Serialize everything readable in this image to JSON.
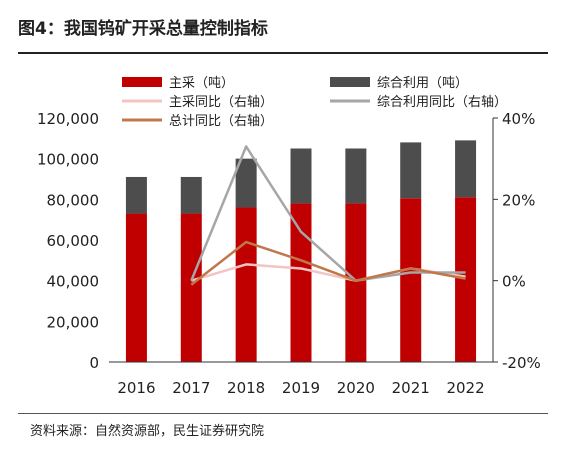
{
  "figure": {
    "title": "图4：我国钨矿开采总量控制指标",
    "source": "资料来源：自然资源部，民生证券研究院"
  },
  "chart_data": {
    "type": "bar",
    "categories": [
      "2016",
      "2017",
      "2018",
      "2019",
      "2020",
      "2021",
      "2022"
    ],
    "series": [
      {
        "name": "主采（吨）",
        "kind": "bar-stack",
        "axis": "left",
        "color": "#c00000",
        "values": [
          73000,
          73000,
          76000,
          78000,
          78000,
          80500,
          81000
        ]
      },
      {
        "name": "综合利用（吨）",
        "kind": "bar-stack",
        "axis": "left",
        "color": "#4d4d4d",
        "values": [
          18000,
          18000,
          24000,
          27000,
          27000,
          27500,
          28000
        ]
      },
      {
        "name": "主采同比（右轴）",
        "kind": "line",
        "axis": "right",
        "color": "#f2c4c4",
        "values": [
          null,
          0,
          4,
          3,
          0,
          3,
          1
        ]
      },
      {
        "name": "综合利用同比（右轴）",
        "kind": "line",
        "axis": "right",
        "color": "#a6a6a6",
        "values": [
          null,
          0,
          33,
          12,
          0,
          2,
          2
        ]
      },
      {
        "name": "总计同比（右轴）",
        "kind": "line",
        "axis": "right",
        "color": "#c0784a",
        "values": [
          null,
          -1,
          9.5,
          5,
          0,
          3,
          0.5
        ]
      }
    ],
    "ylim": [
      0,
      120000
    ],
    "yticks": [
      "0",
      "20,000",
      "40,000",
      "60,000",
      "80,000",
      "100,000",
      "120,000"
    ],
    "y2lim": [
      -20,
      40
    ],
    "y2ticks": [
      "-20%",
      "0%",
      "20%",
      "40%"
    ],
    "grid": false,
    "legend_position": "top"
  }
}
